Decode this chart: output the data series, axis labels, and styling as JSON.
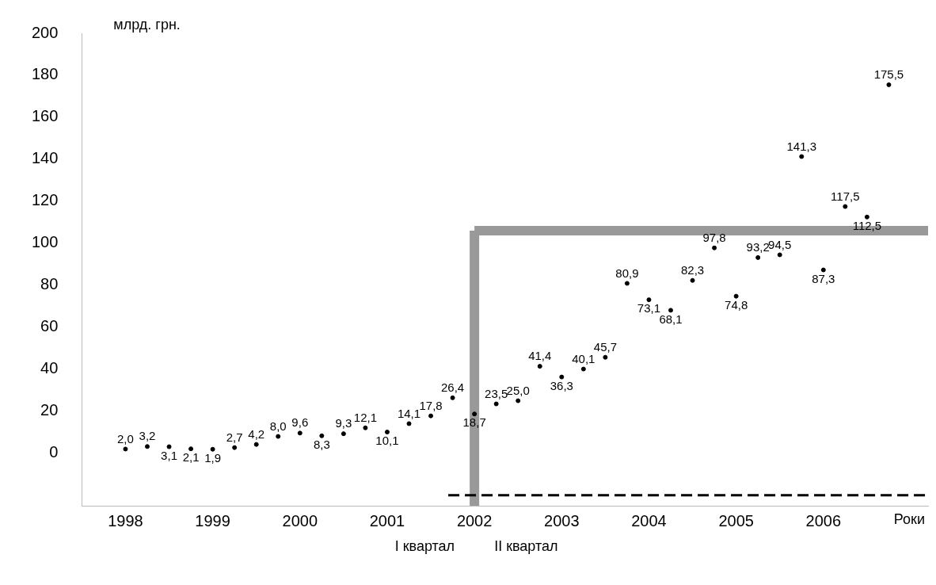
{
  "chart_data": {
    "type": "scatter",
    "ylabel": "млрд. грн.",
    "xlabel": "Роки",
    "x": [
      1998,
      1998.25,
      1998.5,
      1998.75,
      1999,
      1999.25,
      1999.5,
      1999.75,
      2000,
      2000.25,
      2000.5,
      2000.75,
      2001,
      2001.25,
      2001.5,
      2001.75,
      2002,
      2002.25,
      2002.5,
      2002.75,
      2003,
      2003.25,
      2003.5,
      2003.75,
      2004,
      2004.25,
      2004.5,
      2004.75,
      2005,
      2005.25,
      2005.5,
      2005.75,
      2006,
      2006.25,
      2006.5,
      2006.75
    ],
    "series": [
      {
        "color": "#000000",
        "values": [
          2.0,
          3.2,
          3.1,
          2.1,
          1.9,
          2.7,
          4.2,
          8.0,
          9.6,
          8.3,
          9.3,
          12.1,
          10.1,
          14.1,
          17.8,
          26.4,
          18.7,
          23.5,
          25.0,
          41.4,
          36.3,
          40.1,
          45.7,
          80.9,
          73.1,
          68.1,
          82.3,
          97.8,
          74.8,
          93.2,
          94.5,
          141.3,
          87.3,
          117.5,
          112.5,
          175.5
        ],
        "value_labels": [
          "2,0",
          "3,2",
          "3,1",
          "2,1",
          "1,9",
          "2,7",
          "4,2",
          "8,0",
          "9,6",
          "8,3",
          "9,3",
          "12,1",
          "10,1",
          "14,1",
          "17,8",
          "26,4",
          "18,7",
          "23,5",
          "25,0",
          "41,4",
          "36,3",
          "40,1",
          "45,7",
          "80,9",
          "73,1",
          "68,1",
          "82,3",
          "97,8",
          "74,8",
          "93,2",
          "94,5",
          "141,3",
          "87,3",
          "117,5",
          "112,5",
          "175,5"
        ]
      }
    ],
    "marker": "circle",
    "grid": false,
    "legend": false,
    "xlim": [
      1997.5,
      2007.2
    ],
    "xticks": [
      1998,
      1999,
      2000,
      2001,
      2002,
      2003,
      2004,
      2005,
      2006
    ],
    "ylim": [
      -25,
      200
    ],
    "yticks": [
      0,
      20,
      40,
      60,
      80,
      100,
      120,
      140,
      160,
      180,
      200
    ],
    "ref_lines": [
      {
        "axis": "y",
        "value": 106,
        "label": null,
        "color": "#999999"
      },
      {
        "axis": "x",
        "value": 2002,
        "label": null,
        "color": "#999999"
      },
      {
        "axis": "y",
        "value": -20,
        "label": null,
        "color": "#000000",
        "line_style": "dashed"
      }
    ],
    "annotations": [
      "I квартал",
      "II квартал"
    ]
  }
}
